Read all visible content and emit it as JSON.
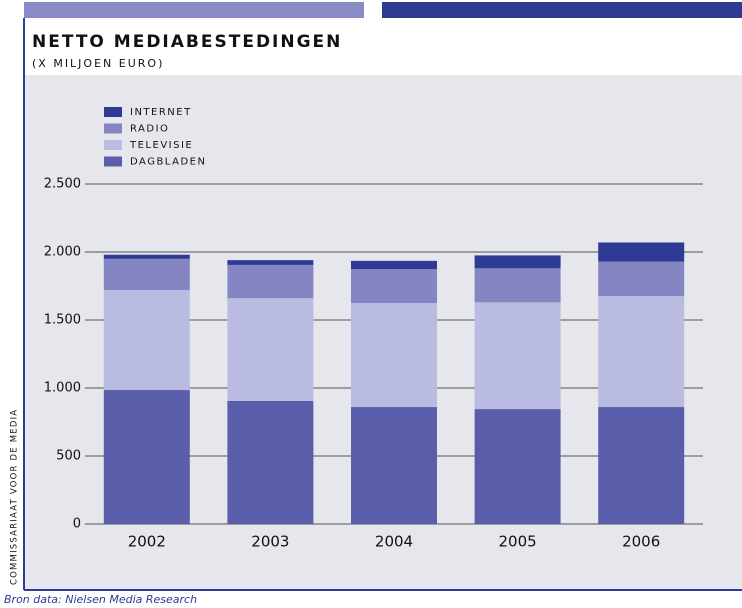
{
  "chart_data": {
    "type": "stacked-bar",
    "title": "NETTO MEDIABESTEDINGEN",
    "subtitle": "(X MILJOEN EURO)",
    "side_label": "COMMISSARIAAT VOOR DE MEDIA",
    "source": "Bron data: Nielsen Media Research",
    "categories": [
      "2002",
      "2003",
      "2004",
      "2005",
      "2006"
    ],
    "series": [
      {
        "name": "DAGBLADEN",
        "color": "#5a5daa",
        "values": [
          985,
          905,
          860,
          845,
          860
        ]
      },
      {
        "name": "TELEVISIE",
        "color": "#babbe0",
        "values": [
          735,
          755,
          765,
          785,
          815
        ]
      },
      {
        "name": "RADIO",
        "color": "#8585c4",
        "values": [
          230,
          245,
          250,
          250,
          255
        ]
      },
      {
        "name": "INTERNET",
        "color": "#2e3a94",
        "values": [
          30,
          35,
          60,
          95,
          140
        ]
      }
    ],
    "ylim": [
      0,
      2500
    ],
    "yticks": [
      0,
      500,
      {
        "value": 1000,
        "label": "1.000"
      },
      {
        "value": 1500,
        "label": "1.500"
      },
      {
        "value": 2000,
        "label": "2.000"
      },
      {
        "value": 2500,
        "label": "2.500"
      }
    ],
    "grid": true
  }
}
